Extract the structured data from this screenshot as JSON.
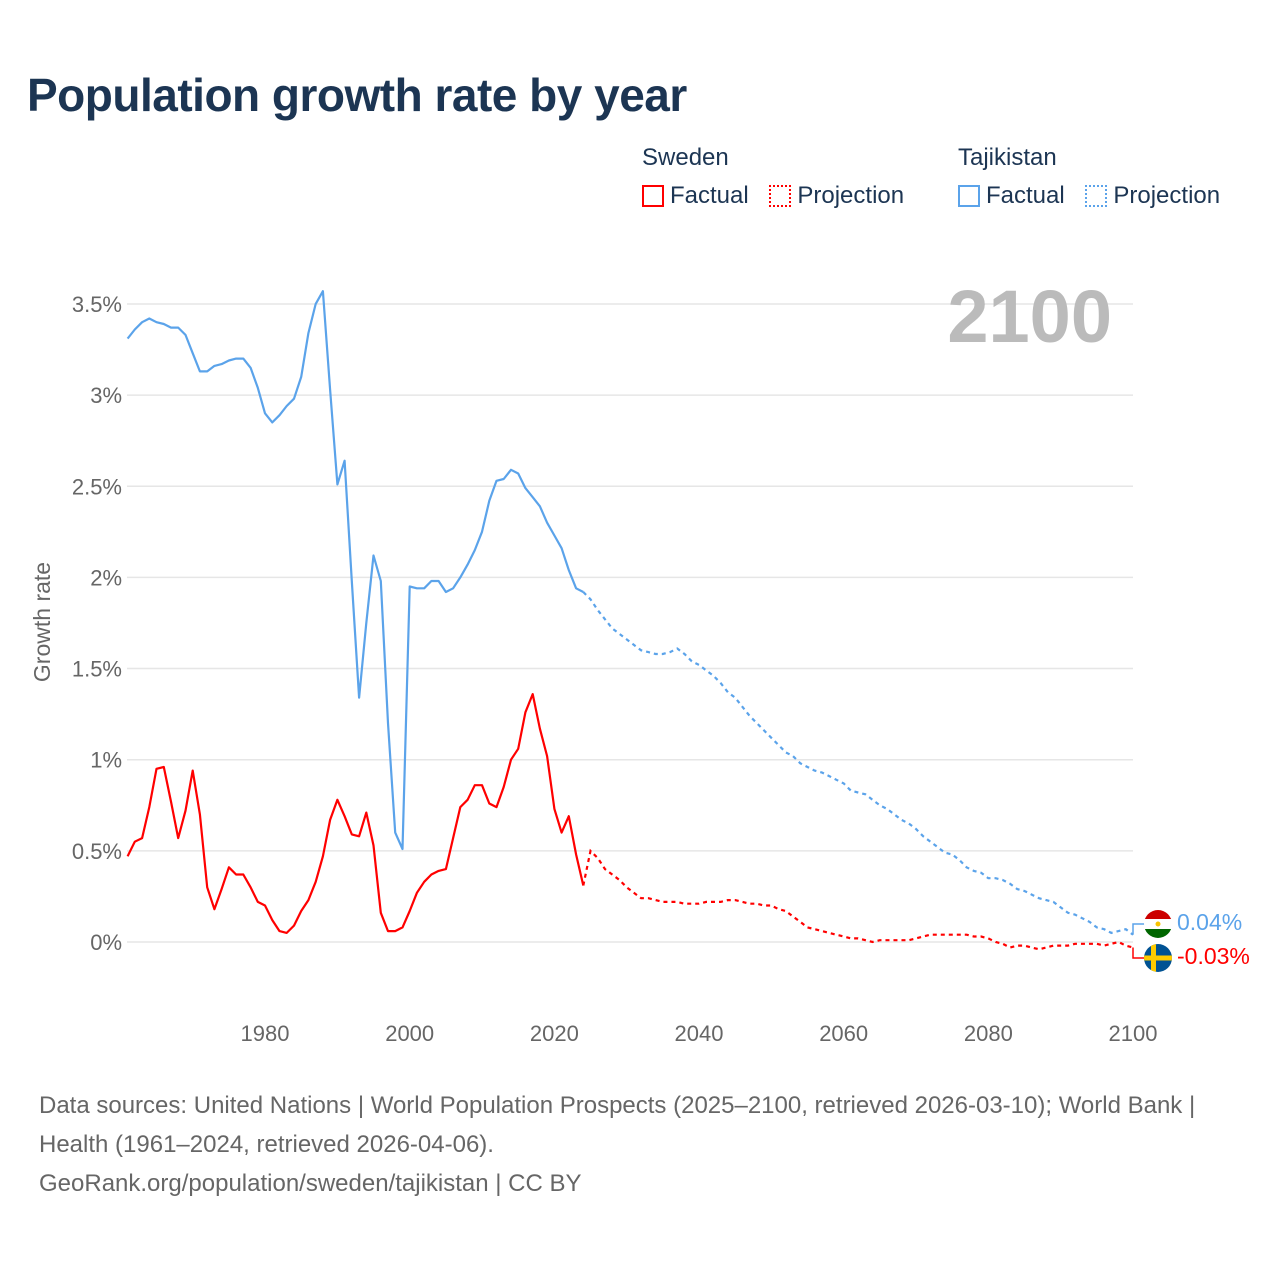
{
  "title": "Population growth rate by year",
  "legend": {
    "groups": [
      {
        "name": "Sweden",
        "color": "#ff0000",
        "factual_label": "Factual",
        "projection_label": "Projection"
      },
      {
        "name": "Tajikistan",
        "color": "#5ba3ea",
        "factual_label": "Factual",
        "projection_label": "Projection"
      }
    ]
  },
  "year_display": "2100",
  "footer": {
    "sources": "Data sources: United Nations | World Population Prospects (2025–2100, retrieved 2026-03-10); World Bank | Health (1961–2024, retrieved 2026-04-06).",
    "link": "GeoRank.org/population/sweden/tajikistan | CC BY"
  },
  "chart_data": {
    "type": "line",
    "title": "Population growth rate by year",
    "xlabel": "",
    "ylabel": "Growth rate",
    "xlim": [
      1961,
      2100
    ],
    "ylim": [
      -0.3,
      3.6
    ],
    "yticks": [
      0,
      0.5,
      1,
      1.5,
      2,
      2.5,
      3,
      3.5
    ],
    "ytick_labels": [
      "0%",
      "0.5%",
      "1%",
      "1.5%",
      "2%",
      "2.5%",
      "3%",
      "3.5%"
    ],
    "xticks": [
      1980,
      2000,
      2020,
      2040,
      2060,
      2080,
      2100
    ],
    "xtick_labels": [
      "1980",
      "2000",
      "2020",
      "2040",
      "2060",
      "2080",
      "2100"
    ],
    "grid": true,
    "series": [
      {
        "name": "Tajikistan",
        "color": "#5ba3ea",
        "end_label": "0.04%",
        "factual_start": 1961,
        "factual": [
          3.31,
          3.36,
          3.4,
          3.42,
          3.4,
          3.39,
          3.37,
          3.37,
          3.33,
          3.23,
          3.13,
          3.13,
          3.16,
          3.17,
          3.19,
          3.2,
          3.2,
          3.15,
          3.04,
          2.9,
          2.85,
          2.89,
          2.94,
          2.98,
          3.1,
          3.34,
          3.5,
          3.57,
          3.03,
          2.51,
          2.64,
          1.98,
          1.34,
          1.75,
          2.12,
          1.98,
          1.2,
          0.6,
          0.51,
          1.95,
          1.94,
          1.94,
          1.98,
          1.98,
          1.92,
          1.94,
          2.0,
          2.07,
          2.15,
          2.25,
          2.42,
          2.53,
          2.54,
          2.59,
          2.57,
          2.49,
          2.44,
          2.39,
          2.3,
          2.23,
          2.16,
          2.04,
          1.94,
          1.92
        ],
        "projection_start": 2025,
        "projection": [
          1.88,
          1.82,
          1.77,
          1.72,
          1.69,
          1.66,
          1.63,
          1.6,
          1.59,
          1.58,
          1.58,
          1.59,
          1.61,
          1.58,
          1.54,
          1.52,
          1.49,
          1.46,
          1.42,
          1.37,
          1.34,
          1.29,
          1.24,
          1.2,
          1.16,
          1.12,
          1.08,
          1.04,
          1.02,
          0.98,
          0.96,
          0.94,
          0.93,
          0.91,
          0.89,
          0.87,
          0.83,
          0.82,
          0.81,
          0.78,
          0.75,
          0.73,
          0.7,
          0.67,
          0.65,
          0.62,
          0.58,
          0.55,
          0.52,
          0.49,
          0.48,
          0.45,
          0.41,
          0.39,
          0.38,
          0.35,
          0.35,
          0.34,
          0.32,
          0.29,
          0.28,
          0.26,
          0.24,
          0.23,
          0.22,
          0.19,
          0.16,
          0.15,
          0.13,
          0.11,
          0.08,
          0.07,
          0.05,
          0.06,
          0.07,
          0.04
        ]
      },
      {
        "name": "Sweden",
        "color": "#ff0000",
        "end_label": "-0.03%",
        "factual_start": 1961,
        "factual": [
          0.47,
          0.55,
          0.57,
          0.74,
          0.95,
          0.96,
          0.77,
          0.57,
          0.72,
          0.94,
          0.7,
          0.3,
          0.18,
          0.29,
          0.41,
          0.37,
          0.37,
          0.3,
          0.22,
          0.2,
          0.12,
          0.06,
          0.05,
          0.09,
          0.17,
          0.23,
          0.33,
          0.47,
          0.67,
          0.78,
          0.69,
          0.59,
          0.58,
          0.71,
          0.53,
          0.16,
          0.06,
          0.06,
          0.08,
          0.17,
          0.27,
          0.33,
          0.37,
          0.39,
          0.4,
          0.57,
          0.74,
          0.78,
          0.86,
          0.86,
          0.76,
          0.74,
          0.85,
          1.0,
          1.06,
          1.26,
          1.36,
          1.17,
          1.02,
          0.73,
          0.6,
          0.69,
          0.48,
          0.31
        ],
        "projection_start": 2025,
        "projection": [
          0.5,
          0.46,
          0.4,
          0.37,
          0.34,
          0.3,
          0.27,
          0.24,
          0.24,
          0.23,
          0.22,
          0.22,
          0.22,
          0.21,
          0.21,
          0.21,
          0.22,
          0.22,
          0.22,
          0.23,
          0.23,
          0.22,
          0.21,
          0.21,
          0.2,
          0.2,
          0.18,
          0.17,
          0.14,
          0.11,
          0.08,
          0.07,
          0.06,
          0.05,
          0.04,
          0.03,
          0.02,
          0.02,
          0.01,
          0.0,
          0.01,
          0.01,
          0.01,
          0.01,
          0.01,
          0.02,
          0.03,
          0.04,
          0.04,
          0.04,
          0.04,
          0.04,
          0.04,
          0.03,
          0.03,
          0.02,
          0.0,
          -0.01,
          -0.03,
          -0.02,
          -0.02,
          -0.03,
          -0.04,
          -0.03,
          -0.02,
          -0.02,
          -0.02,
          -0.01,
          -0.01,
          -0.01,
          -0.01,
          -0.02,
          -0.01,
          0.0,
          -0.02,
          -0.03
        ]
      }
    ]
  }
}
